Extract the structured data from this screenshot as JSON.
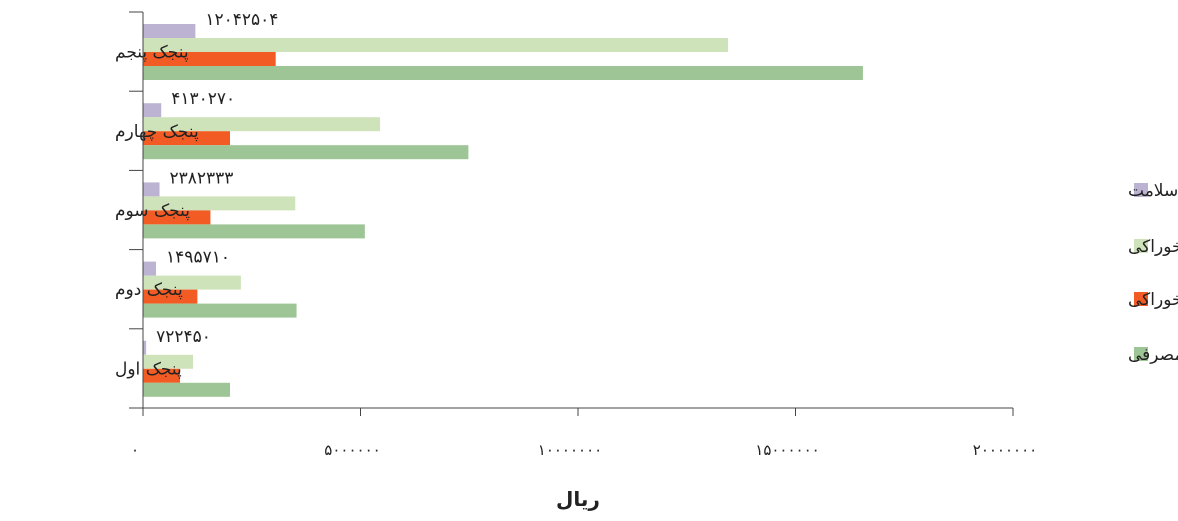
{
  "chart_data": {
    "type": "bar",
    "orientation": "horizontal",
    "categories": [
      "پنجک اول",
      "پنجک دوم",
      "پنجک سوم",
      "پنجک چهارم",
      "پنجک پنجم"
    ],
    "series": [
      {
        "name": "سلامت",
        "color": "#bcb3d3",
        "values": [
          72245,
          300000,
          380000,
          419000,
          1204250
        ]
      },
      {
        "name": "مواد غیر خوراکی",
        "color": "#cfe3bb",
        "values": [
          1150000,
          2250000,
          3500000,
          5450000,
          13450000
        ]
      },
      {
        "name": "مواد خوراکی",
        "color": "#f25b23",
        "values": [
          850000,
          1250000,
          1550000,
          2000000,
          3050000
        ]
      },
      {
        "name": "کل هزینه‌های مصرفی",
        "color": "#9dc595",
        "values": [
          2000000,
          3530000,
          5100000,
          7480000,
          16550000
        ]
      }
    ],
    "data_labels": [
      "۷۲۲۴۵۰",
      "۱۴۹۵۷۱۰",
      "۲۳۸۲۳۳۳",
      "۴۱۳۰۲۷۰",
      "۱۲۰۴۲۵۰۴"
    ],
    "x_ticks": [
      0,
      5000000,
      10000000,
      15000000,
      20000000
    ],
    "x_tick_labels": [
      "۰",
      "۵۰۰۰۰۰۰",
      "۱۰۰۰۰۰۰۰",
      "۱۵۰۰۰۰۰۰",
      "۲۰۰۰۰۰۰۰"
    ],
    "xlim": [
      0,
      20000000
    ],
    "xlabel": "ریال",
    "ylabel": "",
    "title": "",
    "grid": false,
    "legend_position": "right"
  }
}
